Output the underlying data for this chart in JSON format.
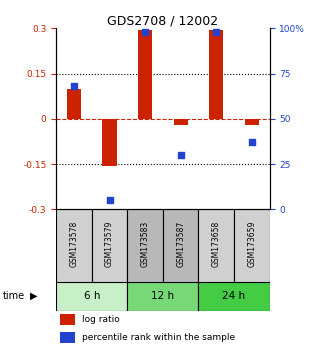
{
  "title": "GDS2708 / 12002",
  "samples": [
    "GSM173578",
    "GSM173579",
    "GSM173583",
    "GSM173587",
    "GSM173658",
    "GSM173659"
  ],
  "log_ratio": [
    0.1,
    -0.155,
    0.295,
    -0.02,
    0.295,
    -0.02
  ],
  "percentile_rank": [
    68,
    5,
    98,
    30,
    98,
    37
  ],
  "time_groups": [
    {
      "label": "6 h",
      "start": 0,
      "end": 2,
      "color": "#c8f0c8"
    },
    {
      "label": "12 h",
      "start": 2,
      "end": 4,
      "color": "#78d878"
    },
    {
      "label": "24 h",
      "start": 4,
      "end": 6,
      "color": "#44cc44"
    }
  ],
  "ylim_left": [
    -0.3,
    0.3
  ],
  "ylim_right": [
    0,
    100
  ],
  "yticks_left": [
    -0.3,
    -0.15,
    0,
    0.15,
    0.3
  ],
  "ytick_labels_left": [
    "-0.3",
    "-0.15",
    "0",
    "0.15",
    "0.3"
  ],
  "yticks_right": [
    0,
    25,
    50,
    75,
    100
  ],
  "ytick_labels_right": [
    "0",
    "25",
    "50",
    "75",
    "100%"
  ],
  "hlines_black": [
    0.15,
    -0.15
  ],
  "bar_color": "#cc2200",
  "dot_color": "#2244cc",
  "bar_width": 0.4,
  "dot_size": 25,
  "background_color": "#ffffff",
  "label_log_ratio": "log ratio",
  "label_percentile": "percentile rank within the sample",
  "time_label": "time",
  "cell_colors": [
    "#d0d0d0",
    "#d0d0d0",
    "#b8b8b8",
    "#b8b8b8",
    "#d0d0d0",
    "#d0d0d0"
  ]
}
